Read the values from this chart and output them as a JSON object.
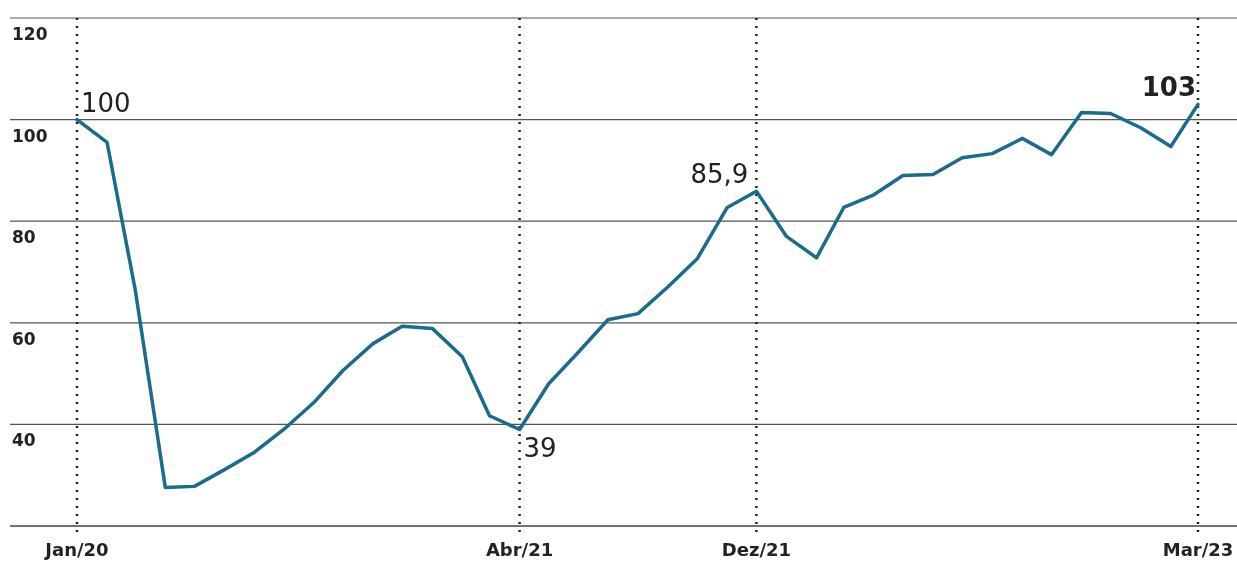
{
  "chart_data": {
    "type": "line",
    "x": [
      "2020-01",
      "2020-02",
      "2020-03",
      "2020-04",
      "2020-05",
      "2020-06",
      "2020-07",
      "2020-08",
      "2020-09",
      "2020-10",
      "2020-11",
      "2020-12",
      "2021-01",
      "2021-02",
      "2021-03",
      "2021-04",
      "2021-05",
      "2021-06",
      "2021-07",
      "2021-08",
      "2021-09",
      "2021-10",
      "2021-11",
      "2021-12",
      "2022-01",
      "2022-02",
      "2022-03",
      "2022-04",
      "2022-05",
      "2022-06",
      "2022-07",
      "2022-08",
      "2022-09",
      "2022-10",
      "2022-11",
      "2022-12",
      "2023-01",
      "2023-02",
      "2023-03"
    ],
    "series": [
      {
        "color": "#1a6b8c",
        "values": [
          100,
          95.5,
          66.5,
          27.6,
          27.8,
          31.1,
          34.4,
          39,
          44.3,
          50.6,
          55.9,
          59.3,
          58.9,
          53.3,
          41.7,
          39,
          48,
          54.3,
          60.6,
          61.8,
          67.1,
          72.6,
          82.7,
          85.9,
          77,
          72.8,
          82.7,
          85.2,
          89,
          89.2,
          92.5,
          93.3,
          96.3,
          93.1,
          101.4,
          101.2,
          98.4,
          94.7,
          103
        ]
      }
    ],
    "xlim": [
      "2020-01",
      "2023-03"
    ],
    "xticks": [
      {
        "value": "2020-01",
        "label": "Jan/20"
      },
      {
        "value": "2021-04",
        "label": "Abr/21"
      },
      {
        "value": "2021-12",
        "label": "Dez/21"
      },
      {
        "value": "2023-03",
        "label": "Mar/23"
      }
    ],
    "ylim": [
      20,
      120
    ],
    "yticks": [
      40,
      60,
      80,
      100,
      120
    ],
    "grid": true,
    "line_style": "solid",
    "marker": "none",
    "annotations": [
      {
        "text": "100",
        "x": "2020-01",
        "y": 100
      },
      {
        "text": "39",
        "x": "2021-04",
        "y": 39
      },
      {
        "text": "85,9",
        "x": "2021-12",
        "y": 85.9
      },
      {
        "text": "103",
        "x": "2023-03",
        "y": 103
      }
    ]
  }
}
